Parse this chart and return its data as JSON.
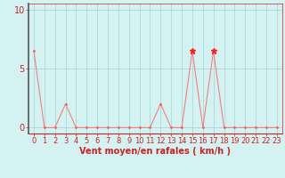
{
  "x": [
    0,
    1,
    2,
    3,
    4,
    5,
    6,
    7,
    8,
    9,
    10,
    11,
    12,
    13,
    14,
    15,
    16,
    17,
    18,
    19,
    20,
    21,
    22,
    23
  ],
  "y": [
    6.5,
    0,
    0,
    2.0,
    0,
    0,
    0,
    0,
    0,
    0,
    0,
    0,
    2.0,
    0,
    0,
    6.5,
    0,
    6.5,
    0,
    0,
    0,
    0,
    0,
    0
  ],
  "star_indices": [
    15,
    17
  ],
  "line_color": "#f08080",
  "marker_color": "#f06060",
  "star_color": "#ff2020",
  "background_color": "#d4f2f2",
  "grid_color": "#aad8d8",
  "axis_color": "#cc2222",
  "tick_color": "#cc2222",
  "xlabel": "Vent moyen/en rafales ( km/h )",
  "ylabel_ticks": [
    0,
    5,
    10
  ],
  "ylim": [
    -0.5,
    10.5
  ],
  "xlim": [
    -0.5,
    23.5
  ],
  "xlabel_fontsize": 7,
  "tick_fontsize_x": 6,
  "tick_fontsize_y": 7
}
